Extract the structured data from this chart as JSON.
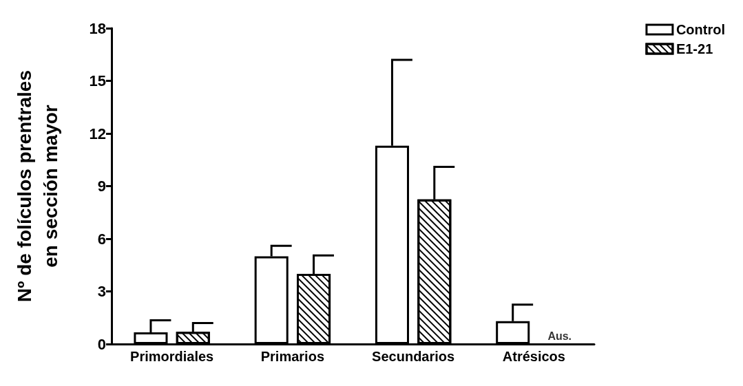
{
  "chart_data": {
    "type": "bar",
    "ylabel": "Nº de folículos prentrales\nen sección mayor",
    "categories": [
      "Primordiales",
      "Primarios",
      "Secundarios",
      "Atrésicos"
    ],
    "series": [
      {
        "name": "Control",
        "color": "#ffffff",
        "values": [
          0.67,
          5.0,
          11.3,
          1.3
        ],
        "errors": [
          [
            0.67,
            1.35
          ],
          [
            5.0,
            5.6
          ],
          [
            11.3,
            16.2
          ],
          [
            1.3,
            2.25
          ]
        ]
      },
      {
        "name": "E1-21",
        "color": "#ffffff",
        "values": [
          0.7,
          4.0,
          8.25,
          null
        ],
        "errors": [
          [
            0.7,
            1.2
          ],
          [
            4.0,
            5.05
          ],
          [
            8.25,
            10.1
          ],
          null
        ]
      }
    ],
    "ylim": [
      0,
      18
    ],
    "yticks": [
      0,
      3,
      6,
      9,
      12,
      15,
      18
    ],
    "grid": false,
    "legend": "top right",
    "annotations": [
      "Aus."
    ]
  }
}
